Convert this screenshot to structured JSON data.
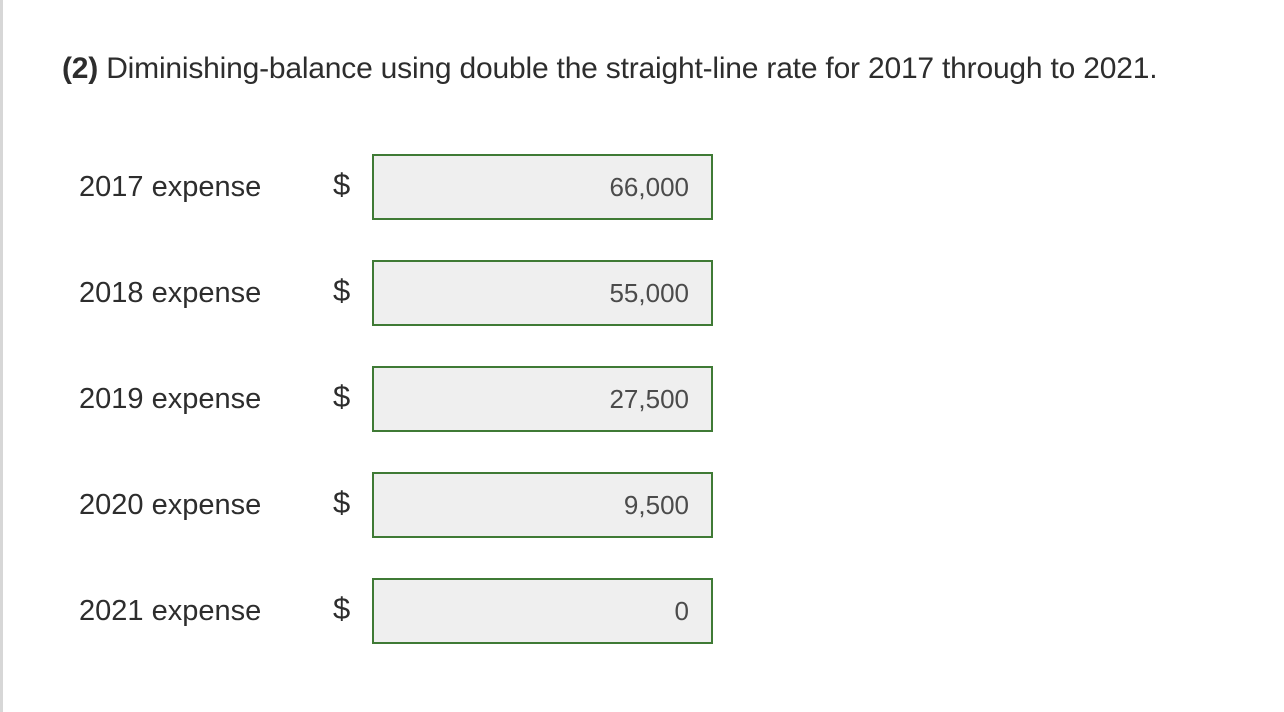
{
  "question": {
    "part_label": "(2)",
    "text": "Diminishing-balance using double the straight-line rate for 2017 through to 2021."
  },
  "currency_symbol": "$",
  "rows": [
    {
      "label": "2017 expense",
      "value": "66,000"
    },
    {
      "label": "2018 expense",
      "value": "55,000"
    },
    {
      "label": "2019 expense",
      "value": "27,500"
    },
    {
      "label": "2020 expense",
      "value": "9,500"
    },
    {
      "label": "2021 expense",
      "value": "0"
    }
  ],
  "colors": {
    "input_border": "#3f7a35",
    "input_background": "#efefef",
    "text": "#2d2d2d"
  }
}
